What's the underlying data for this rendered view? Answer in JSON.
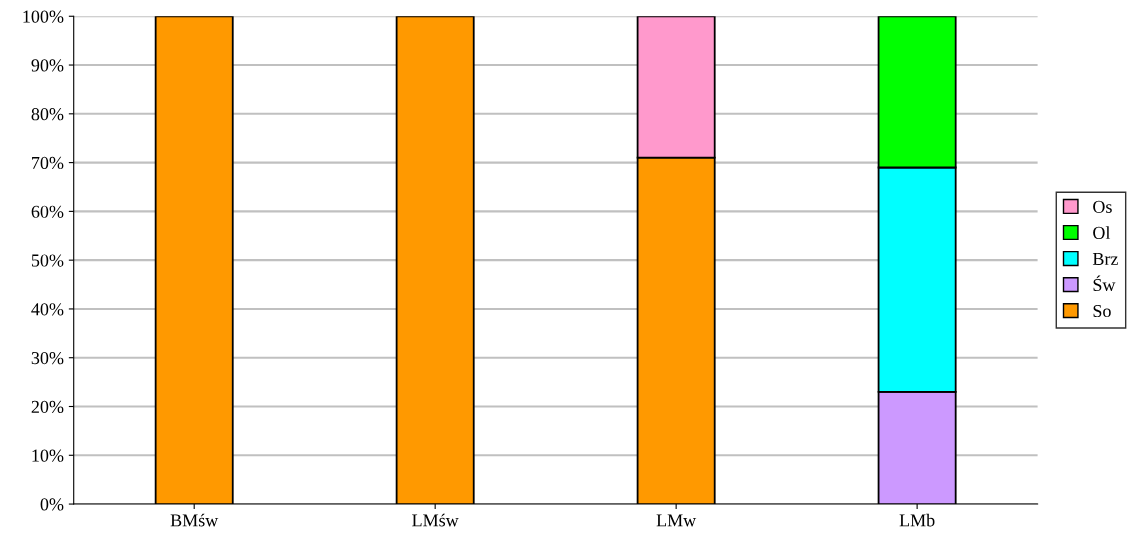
{
  "chart_data": {
    "type": "bar",
    "stacked": true,
    "categories": [
      "BMśw",
      "LMśw",
      "LMw",
      "LMb"
    ],
    "series": [
      {
        "name": "So",
        "color": "#ff9900",
        "values": [
          100,
          100,
          71,
          null
        ]
      },
      {
        "name": "Św",
        "color": "#cc99ff",
        "values": [
          null,
          null,
          null,
          23
        ]
      },
      {
        "name": "Brz",
        "color": "#00ffff",
        "values": [
          null,
          null,
          null,
          46
        ]
      },
      {
        "name": "Ol",
        "color": "#00ff00",
        "values": [
          null,
          null,
          null,
          31
        ]
      },
      {
        "name": "Os",
        "color": "#ff99cc",
        "values": [
          null,
          null,
          29,
          null
        ]
      }
    ],
    "ylim": [
      0,
      100
    ],
    "yticks": [
      {
        "value": 0,
        "label": "0%"
      },
      {
        "value": 10,
        "label": "10%"
      },
      {
        "value": 20,
        "label": "20%"
      },
      {
        "value": 30,
        "label": "30%"
      },
      {
        "value": 40,
        "label": "40%"
      },
      {
        "value": 50,
        "label": "50%"
      },
      {
        "value": 60,
        "label": "60%"
      },
      {
        "value": 70,
        "label": "70%"
      },
      {
        "value": 80,
        "label": "80%"
      },
      {
        "value": 90,
        "label": "90%"
      },
      {
        "value": 100,
        "label": "100%"
      }
    ],
    "grid": "y",
    "legend": "right"
  }
}
